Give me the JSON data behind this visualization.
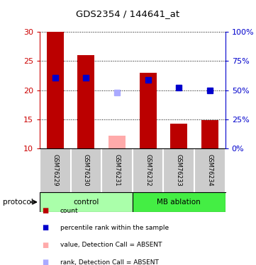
{
  "title": "GDS2354 / 144641_at",
  "samples": [
    "GSM76229",
    "GSM76230",
    "GSM76231",
    "GSM76232",
    "GSM76233",
    "GSM76234"
  ],
  "count_values": [
    30,
    26,
    12.2,
    23,
    14.3,
    14.8
  ],
  "rank_values": [
    22.1,
    22.1,
    19.6,
    21.7,
    20.4,
    20.0
  ],
  "absent_flags": [
    false,
    false,
    true,
    false,
    false,
    false
  ],
  "ylim_left": [
    10,
    30
  ],
  "ylim_right": [
    0,
    100
  ],
  "yticks_left": [
    10,
    15,
    20,
    25,
    30
  ],
  "yticks_right": [
    0,
    25,
    50,
    75,
    100
  ],
  "ytick_right_labels": [
    "0%",
    "25%",
    "50%",
    "75%",
    "100%"
  ],
  "bar_color_present": "#bb0000",
  "bar_color_absent": "#ffaaaa",
  "rank_color_present": "#0000cc",
  "rank_color_absent": "#aaaaff",
  "groups": [
    {
      "name": "control",
      "samples": [
        0,
        1,
        2
      ],
      "color": "#aaffaa"
    },
    {
      "name": "MB ablation",
      "samples": [
        3,
        4,
        5
      ],
      "color": "#44ee44"
    }
  ],
  "group_label": "protocol",
  "bar_width": 0.55,
  "rank_marker_size": 6,
  "background_sample_row": "#cccccc",
  "left_axis_color": "#cc0000",
  "right_axis_color": "#0000cc",
  "legend_items": [
    {
      "color": "#bb0000",
      "label": "count"
    },
    {
      "color": "#0000cc",
      "label": "percentile rank within the sample"
    },
    {
      "color": "#ffaaaa",
      "label": "value, Detection Call = ABSENT"
    },
    {
      "color": "#aaaaff",
      "label": "rank, Detection Call = ABSENT"
    }
  ]
}
